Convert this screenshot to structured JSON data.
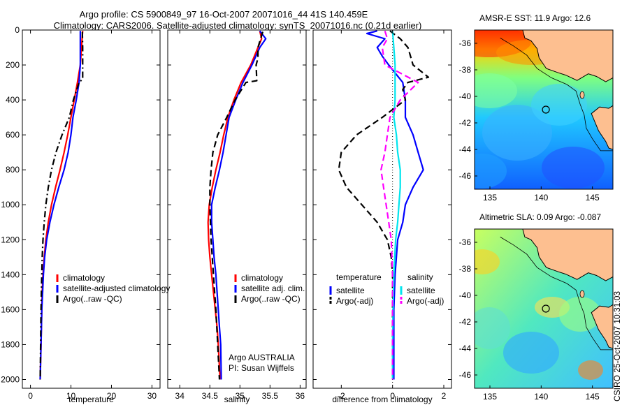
{
  "titles": {
    "line1": "Argo profile: CS 5900849_97 16-Oct-2007 20071016_44 41S 140.459E",
    "line2": "Climatology: CARS2006. Satellite-adjusted climatology: synTS_20071016.nc (0.21d earlier)"
  },
  "stamp": "CSIRO 25-Oct-2007 10:31:03",
  "colors": {
    "climatology": "#ff0000",
    "satellite": "#0000ff",
    "argo": "#000000",
    "satellite_sal": "#00e5ee",
    "argo_sal_adj": "#ff00ff"
  },
  "chart_data": [
    {
      "type": "line",
      "panel": "temperature",
      "xlabel": "temperature",
      "xlim": [
        -2,
        32
      ],
      "ylim": [
        0,
        2050
      ],
      "y_reversed": true,
      "x_ticks": [
        "0",
        "10",
        "20",
        "30"
      ],
      "y_ticks": [
        "0",
        "200",
        "400",
        "600",
        "800",
        "1000",
        "1200",
        "1400",
        "1600",
        "1800",
        "2000"
      ],
      "legend": [
        "climatology",
        "satellite-adjusted climatology",
        "Argo(..raw -QC)"
      ],
      "series": [
        {
          "name": "climatology",
          "color": "red",
          "style": "solid",
          "depth": [
            5,
            100,
            200,
            300,
            400,
            500,
            600,
            700,
            800,
            900,
            1000,
            1100,
            1200,
            1300,
            1400,
            1500,
            1600,
            1800,
            2000
          ],
          "values": [
            12.9,
            12.6,
            12.3,
            11.6,
            10.8,
            10.0,
            9.2,
            8.3,
            7.3,
            6.2,
            5.2,
            4.4,
            3.8,
            3.4,
            3.1,
            2.9,
            2.8,
            2.6,
            2.4
          ]
        },
        {
          "name": "satellite-adjusted climatology",
          "color": "blue",
          "style": "solid",
          "depth": [
            5,
            100,
            200,
            300,
            400,
            500,
            600,
            700,
            800,
            900,
            1000,
            1100,
            1200,
            1300,
            1400,
            1500,
            1600,
            1800,
            2000
          ],
          "values": [
            12.3,
            12.3,
            12.3,
            12.0,
            11.3,
            10.5,
            10.0,
            9.3,
            8.3,
            7.0,
            5.8,
            4.8,
            4.0,
            3.5,
            3.2,
            3.0,
            2.8,
            2.6,
            2.4
          ]
        },
        {
          "name": "Argo(..raw -QC)",
          "color": "black",
          "style": "dashdot",
          "depth": [
            10,
            100,
            200,
            280,
            300,
            400,
            500,
            600,
            700,
            800,
            900,
            1000,
            1100,
            1200,
            1300,
            1400,
            1500,
            1600,
            1800,
            2000
          ],
          "values": [
            12.8,
            12.9,
            12.9,
            12.9,
            12.0,
            10.6,
            9.6,
            7.8,
            6.3,
            5.2,
            4.4,
            3.8,
            3.4,
            3.1,
            2.9,
            2.8,
            2.7,
            2.6,
            2.5,
            2.4
          ]
        }
      ]
    },
    {
      "type": "line",
      "panel": "salinity",
      "xlabel": "salinity",
      "xlim": [
        33.8,
        36.1
      ],
      "ylim": [
        0,
        2050
      ],
      "y_reversed": true,
      "x_ticks": [
        "34",
        "34.5",
        "35",
        "35.5",
        "36"
      ],
      "legend": [
        "climatology",
        "satellite adj. clim.",
        "Argo(..raw -QC)"
      ],
      "annotation": [
        "Argo AUSTRALIA",
        "PI: Susan Wijffels"
      ],
      "series": [
        {
          "name": "climatology",
          "color": "red",
          "style": "solid",
          "depth": [
            5,
            50,
            100,
            200,
            300,
            400,
            500,
            600,
            700,
            800,
            900,
            1000,
            1100,
            1200,
            1300,
            1400,
            1500,
            1600,
            1700,
            1800,
            2000
          ],
          "values": [
            35.33,
            35.36,
            35.3,
            35.18,
            35.02,
            34.9,
            34.8,
            34.73,
            34.67,
            34.6,
            34.54,
            34.49,
            34.47,
            34.48,
            34.5,
            34.53,
            34.56,
            34.59,
            34.62,
            34.64,
            34.67
          ]
        },
        {
          "name": "satellite adj. clim.",
          "color": "blue",
          "style": "solid",
          "depth": [
            5,
            50,
            100,
            200,
            300,
            400,
            500,
            600,
            700,
            800,
            900,
            1000,
            1100,
            1200,
            1300,
            1400,
            1500,
            1600,
            1700,
            1800,
            2000
          ],
          "values": [
            35.33,
            35.43,
            35.33,
            35.2,
            35.05,
            34.93,
            34.82,
            34.77,
            34.72,
            34.66,
            34.59,
            34.53,
            34.53,
            34.55,
            34.57,
            34.6,
            34.62,
            34.64,
            34.66,
            34.68,
            34.69
          ]
        },
        {
          "name": "Argo(..raw -QC)",
          "color": "black",
          "style": "dashed",
          "depth": [
            10,
            100,
            160,
            200,
            290,
            300,
            400,
            500,
            600,
            700,
            800,
            900,
            1000,
            1100,
            1200,
            1300,
            1400,
            1500,
            1600,
            1800,
            2000
          ],
          "values": [
            35.38,
            35.3,
            35.3,
            35.27,
            35.28,
            35.1,
            34.92,
            34.78,
            34.63,
            34.55,
            34.52,
            34.5,
            34.5,
            34.51,
            34.52,
            34.54,
            34.56,
            34.58,
            34.6,
            34.63,
            34.66
          ]
        }
      ]
    },
    {
      "type": "line",
      "panel": "difference",
      "xlabel": "difference from climatology",
      "xlim": [
        -3.1,
        2.3
      ],
      "ylim": [
        0,
        2050
      ],
      "y_reversed": true,
      "x_ticks": [
        "-2",
        "0",
        "2"
      ],
      "legend": {
        "temperature": [
          "satellite",
          "Argo(-adj)"
        ],
        "salinity": [
          "satellite",
          "Argo(-adj)"
        ],
        "temperature_title": "temperature",
        "salinity_title": "salinity"
      },
      "series": [
        {
          "name": "temperature satellite",
          "color": "blue",
          "style": "solid",
          "depth": [
            5,
            20,
            50,
            100,
            150,
            200,
            300,
            400,
            500,
            600,
            700,
            800,
            900,
            1000,
            1100,
            1200,
            1400,
            1600,
            1800,
            2000
          ],
          "values": [
            -0.6,
            -1.0,
            -0.3,
            -0.6,
            -0.4,
            -0.15,
            0.4,
            0.5,
            0.5,
            0.8,
            1.0,
            1.2,
            0.8,
            0.5,
            0.4,
            0.2,
            0.1,
            0.05,
            0.05,
            0.05
          ]
        },
        {
          "name": "temperature Argo(-adj)",
          "color": "black",
          "style": "dashed",
          "depth": [
            5,
            50,
            100,
            200,
            270,
            300,
            340,
            400,
            500,
            600,
            700,
            800,
            900,
            1000,
            1100,
            1200,
            1300,
            1400,
            1600,
            1800,
            2000
          ],
          "values": [
            -0.1,
            0.3,
            0.6,
            0.8,
            1.4,
            0.6,
            0.4,
            0.5,
            -0.4,
            -1.4,
            -2.0,
            -2.1,
            -1.8,
            -1.2,
            -0.6,
            -0.2,
            -0.05,
            0.0,
            0.0,
            0.0,
            0.0
          ]
        },
        {
          "name": "salinity satellite",
          "color": "cyan",
          "style": "solid",
          "depth": [
            5,
            100,
            200,
            300,
            400,
            500,
            600,
            700,
            800,
            900,
            1000,
            1100,
            1200,
            1400,
            1600,
            1800,
            2000
          ],
          "values": [
            0.0,
            0.05,
            0.1,
            0.1,
            0.1,
            0.05,
            0.15,
            0.2,
            0.3,
            0.3,
            0.25,
            0.2,
            0.12,
            0.05,
            0.02,
            0.0,
            0.0
          ]
        },
        {
          "name": "salinity Argo(-adj)",
          "color": "magenta",
          "style": "dashed",
          "depth": [
            5,
            50,
            100,
            200,
            300,
            400,
            500,
            600,
            700,
            800,
            900,
            1000,
            1100,
            1200,
            1400,
            1600,
            1800,
            2000
          ],
          "values": [
            -0.3,
            -0.2,
            -0.4,
            -0.3,
            1.0,
            0.3,
            -0.1,
            -0.2,
            -0.3,
            -0.45,
            -0.35,
            -0.25,
            -0.15,
            -0.05,
            0.0,
            0.0,
            0.0,
            0.0
          ]
        }
      ]
    },
    {
      "type": "heatmap",
      "panel": "sst-map",
      "title": "AMSR-E SST: 11.9 Argo: 12.6",
      "xlim": [
        133.5,
        147
      ],
      "ylim": [
        -47,
        -35
      ],
      "x_ticks": [
        "135",
        "140",
        "145"
      ],
      "y_ticks": [
        "-36",
        "-38",
        "-40",
        "-42",
        "-44",
        "-46"
      ],
      "marker": {
        "lon": 140.459,
        "lat": -41
      }
    },
    {
      "type": "heatmap",
      "panel": "sla-map",
      "title": "Altimetric SLA: 0.09 Argo: -0.087",
      "xlim": [
        133.5,
        147
      ],
      "ylim": [
        -47,
        -35
      ],
      "x_ticks": [
        "135",
        "140",
        "145"
      ],
      "y_ticks": [
        "-36",
        "-38",
        "-40",
        "-42",
        "-44",
        "-46"
      ],
      "marker": {
        "lon": 140.459,
        "lat": -41
      }
    }
  ]
}
